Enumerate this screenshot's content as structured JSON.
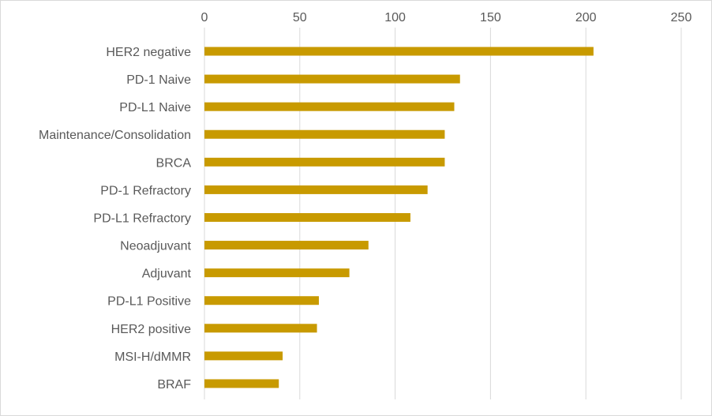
{
  "chart_data": {
    "type": "bar",
    "orientation": "horizontal",
    "title": "",
    "xlabel": "",
    "ylabel": "",
    "xlim": [
      0,
      250
    ],
    "ticks": [
      0,
      50,
      100,
      150,
      200,
      250
    ],
    "x_axis_position": "top",
    "grid": true,
    "legend": "none",
    "bar_color": "#C89A00",
    "grid_color": "#d9d9d9",
    "label_color": "#595959",
    "categories": [
      "HER2 negative",
      "PD-1 Naive",
      "PD-L1 Naive",
      "Maintenance/Consolidation",
      "BRCA",
      "PD-1 Refractory",
      "PD-L1 Refractory",
      "Neoadjuvant",
      "Adjuvant",
      "PD-L1 Positive",
      "HER2 positive",
      "MSI-H/dMMR",
      "BRAF"
    ],
    "values": [
      204,
      134,
      131,
      126,
      126,
      117,
      108,
      86,
      76,
      60,
      59,
      41,
      39
    ]
  }
}
